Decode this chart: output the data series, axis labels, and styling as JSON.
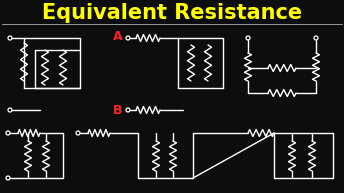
{
  "title": "Equivalent Resistance",
  "title_color": "#FFFF00",
  "background_color": "#0d0d0d",
  "circuit_color": "#FFFFFF",
  "label_A_color": "#FF2222",
  "label_B_color": "#FF2222",
  "separator_color": "#999999",
  "figsize": [
    3.44,
    1.93
  ],
  "dpi": 100
}
